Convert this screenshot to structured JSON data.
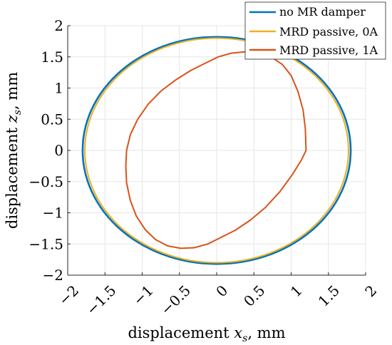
{
  "chart_data": {
    "type": "line",
    "title": "",
    "xlabel": {
      "prefix": "displacement ",
      "var": "x",
      "sub": "s",
      "suffix": ", mm"
    },
    "ylabel": {
      "prefix": "displacement ",
      "var": "z",
      "sub": "s",
      "suffix": ", mm"
    },
    "xlim": [
      -2,
      2
    ],
    "ylim": [
      -2,
      2
    ],
    "xticks": [
      -2,
      -1.5,
      -1,
      -0.5,
      0,
      0.5,
      1,
      1.5,
      2
    ],
    "yticks": [
      -2,
      -1.5,
      -1,
      -0.5,
      0,
      0.5,
      1,
      1.5,
      2
    ],
    "xtick_labels": [
      "−2",
      "−1.5",
      "−1",
      "−0.5",
      "0",
      "0.5",
      "1",
      "1.5",
      "2"
    ],
    "ytick_labels": [
      "−2",
      "−1.5",
      "−1",
      "−0.5",
      "0",
      "0.5",
      "1",
      "1.5",
      "2"
    ],
    "grid": true,
    "legend_position": "top-right",
    "series": [
      {
        "name": "no MR damper",
        "color": "#0072BD",
        "x": [
          1.8,
          1.7825,
          1.7308,
          1.6459,
          1.5298,
          1.3854,
          1.2159,
          1.0255,
          0.8187,
          0.6002,
          0.3752,
          0.1493,
          -0.0751,
          -0.3015,
          -0.5262,
          -0.7415,
          -0.9465,
          -1.1329,
          -1.3124,
          -1.4631,
          -1.5837,
          -1.6944,
          -1.7541,
          -1.7978,
          -1.7934,
          -1.7653,
          -1.6969,
          -1.5969,
          -1.4674,
          -1.3111,
          -1.1311,
          -0.931,
          -0.7149,
          -0.4871,
          -0.2519,
          -0.0134,
          0.224,
          0.456,
          0.6788,
          0.8868,
          1.0803,
          1.2536,
          1.4045,
          1.5299,
          1.6267,
          1.6954,
          1.7522,
          1.7851,
          1.8
        ],
        "y": [
          0,
          0.2361,
          0.4675,
          0.6898,
          0.8986,
          1.0897,
          1.2596,
          1.4049,
          1.5228,
          1.6109,
          1.6676,
          1.6917,
          1.6827,
          1.641,
          1.5672,
          1.4629,
          1.3303,
          1.172,
          0.9913,
          0.7917,
          0.5773,
          0.3523,
          0.1214,
          -0.1115,
          -0.3412,
          -0.5623,
          -0.7765,
          -0.976,
          -1.1562,
          -1.3164,
          -1.4513,
          -1.5577,
          -1.6327,
          -1.6743,
          -1.6818,
          -1.6552,
          -1.5952,
          -1.5032,
          -1.3814,
          -1.2327,
          -1.0604,
          -0.8682,
          -0.6608,
          -0.4429,
          -0.2176,
          0.0105,
          0.0,
          0.0,
          0.0
        ]
      },
      {
        "name": "MRD passive, 0A",
        "color": "#EDB120",
        "x": [],
        "y": []
      },
      {
        "name": "MRD passive, 1A",
        "color": "#D95319",
        "x": [
          1.2,
          1.19,
          1.16,
          1.09,
          1.0,
          0.88,
          0.73,
          0.55,
          0.38,
          0.2,
          0.02,
          -0.15,
          -0.35,
          -0.55,
          -0.75,
          -0.92,
          -1.06,
          -1.16,
          -1.21,
          -1.22,
          -1.21,
          -1.16,
          -1.08,
          -0.96,
          -0.82,
          -0.66,
          -0.48,
          -0.3,
          -0.12,
          0.05,
          0.25,
          0.45,
          0.65,
          0.85,
          1.02,
          1.14,
          1.2
        ],
        "y": [
          0,
          0.35,
          0.65,
          0.95,
          1.2,
          1.38,
          1.5,
          1.56,
          1.58,
          1.56,
          1.5,
          1.4,
          1.28,
          1.13,
          0.95,
          0.74,
          0.5,
          0.25,
          0.0,
          -0.25,
          -0.52,
          -0.8,
          -1.05,
          -1.27,
          -1.43,
          -1.53,
          -1.57,
          -1.56,
          -1.5,
          -1.4,
          -1.28,
          -1.12,
          -0.92,
          -0.66,
          -0.38,
          -0.15,
          0
        ]
      }
    ]
  }
}
